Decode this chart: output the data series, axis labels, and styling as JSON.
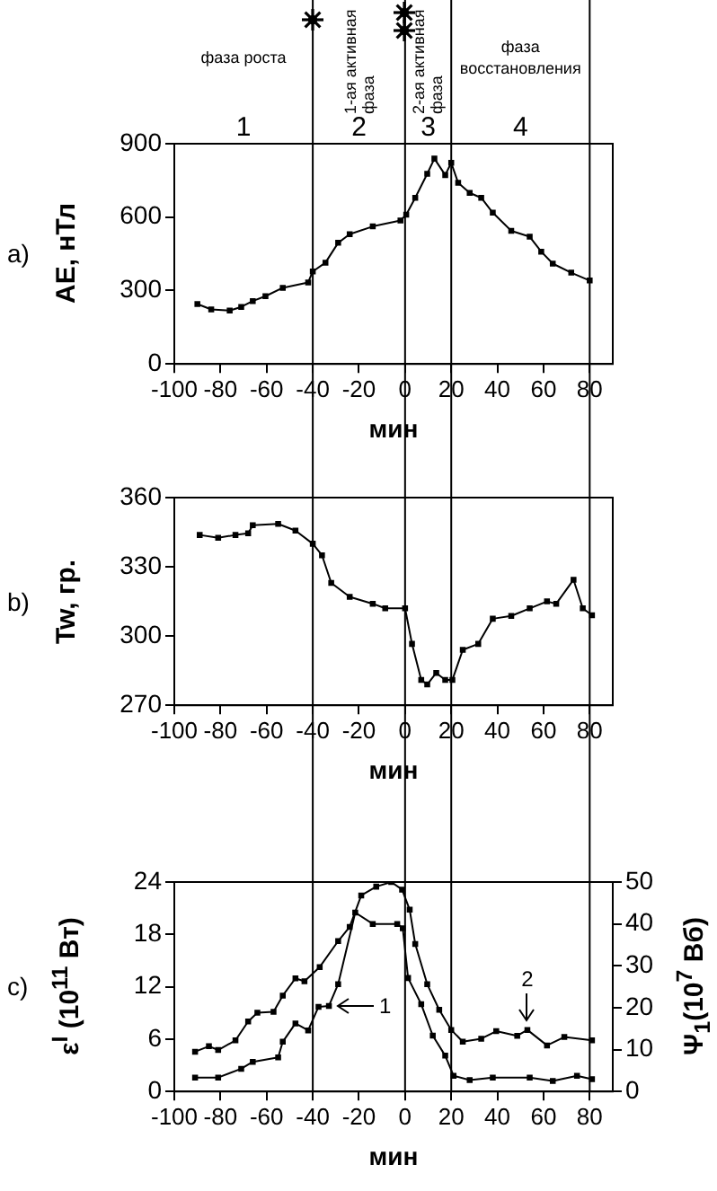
{
  "chart_data": [
    {
      "type": "line",
      "xlabel": "мин",
      "ylabel": "AE, нТл",
      "marker": "square",
      "xlim": [
        -100,
        90
      ],
      "xticks": [
        -100,
        -80,
        -60,
        -40,
        -20,
        0,
        20,
        40,
        60,
        80
      ],
      "ylim": [
        0,
        900
      ],
      "yticks": [
        0,
        300,
        600,
        900
      ],
      "series": [
        {
          "color": "#000000",
          "x": [
            -90,
            -84,
            -76,
            -71,
            -66,
            -60.5,
            -53,
            -42,
            -40,
            -34.5,
            -29,
            -24,
            -14,
            -2,
            0.5,
            4.4,
            9.6,
            12.7,
            17.4,
            20,
            23,
            28,
            33,
            38,
            46,
            54,
            59,
            64,
            72,
            80
          ],
          "values": [
            245,
            223,
            218,
            233,
            257,
            277,
            311,
            333,
            378,
            414,
            495,
            530,
            562,
            586,
            610,
            679,
            777,
            839,
            772,
            822,
            740,
            699,
            679,
            618,
            544,
            520,
            459,
            410,
            373,
            341
          ]
        }
      ],
      "ref_lines": [
        {
          "axis": "x",
          "value": -40
        },
        {
          "axis": "x",
          "value": 0
        },
        {
          "axis": "x",
          "value": 20
        },
        {
          "axis": "x",
          "value": 80
        }
      ],
      "annotations": [
        "a)",
        "1",
        "2",
        "3",
        "4",
        "фаза роста",
        "1-ая активная фаза",
        "2-ая активная фаза",
        "фаза восстановления"
      ]
    },
    {
      "type": "line",
      "xlabel": "мин",
      "ylabel": "Tw, гр.",
      "marker": "square",
      "xlim": [
        -100,
        90
      ],
      "xticks": [
        -100,
        -80,
        -60,
        -40,
        -20,
        0,
        20,
        40,
        60,
        80
      ],
      "ylim": [
        270,
        360
      ],
      "yticks": [
        270,
        300,
        330,
        360
      ],
      "series": [
        {
          "color": "#000000",
          "x": [
            -89,
            -81,
            -73.5,
            -68,
            -66,
            -55,
            -47.5,
            -40,
            -36,
            -32,
            -24,
            -14,
            -8.6,
            0,
            3,
            7,
            9.6,
            13.5,
            17.4,
            20.5,
            25,
            31.7,
            38,
            46,
            54,
            61.5,
            65.5,
            73,
            77,
            81
          ],
          "values": [
            343.8,
            342.6,
            343.8,
            344.5,
            348,
            348.6,
            345.7,
            340,
            335,
            323,
            317,
            314,
            312,
            312,
            296.6,
            281,
            279,
            284,
            281,
            281,
            294,
            296.6,
            307.5,
            308.7,
            312,
            315,
            314,
            324.4,
            312,
            309
          ]
        }
      ],
      "ref_lines": [
        {
          "axis": "x",
          "value": -40
        },
        {
          "axis": "x",
          "value": 0
        },
        {
          "axis": "x",
          "value": 20
        },
        {
          "axis": "x",
          "value": 80
        }
      ],
      "annotations": [
        "b)"
      ]
    },
    {
      "type": "line",
      "xlabel": "мин",
      "ylabel": "ε$^{I}$ (10$^{11}$ Вт)",
      "y2label": "Ψ$_{1}$(10$^{7}$ Вб)",
      "marker": "square",
      "xlim": [
        -100,
        90
      ],
      "xticks": [
        -100,
        -80,
        -60,
        -40,
        -20,
        0,
        20,
        40,
        60,
        80
      ],
      "ylim": [
        0,
        24
      ],
      "yticks": [
        0,
        6,
        12,
        18,
        24
      ],
      "y2lim": [
        0,
        50
      ],
      "y2ticks": [
        0,
        10,
        20,
        30,
        40,
        50
      ],
      "series": [
        {
          "color": "#000000",
          "x": [
            -91,
            -81,
            -71,
            -66,
            -55,
            -53,
            -47.5,
            -42,
            -37.5,
            -33,
            -29,
            -21.6,
            -14,
            -3.4,
            -1,
            1.3,
            7,
            12,
            17.4,
            21,
            28,
            38,
            54,
            64,
            74.5,
            81
          ],
          "values": [
            1.6,
            1.6,
            2.6,
            3.4,
            3.9,
            5.7,
            7.8,
            7.0,
            9.7,
            9.8,
            12.3,
            20.5,
            19.2,
            19.2,
            18.7,
            13.0,
            10.0,
            6.4,
            4.1,
            1.8,
            1.3,
            1.6,
            1.6,
            1.2,
            1.8,
            1.4
          ]
        },
        {
          "color": "#000000",
          "axis": "y2",
          "x": [
            -91,
            -85,
            -81,
            -73.5,
            -68,
            -64,
            -57,
            -53,
            -47.5,
            -43.6,
            -37,
            -29,
            -24,
            -19,
            -12.5,
            -6,
            -1.3,
            2,
            4.4,
            9.6,
            14.8,
            20,
            25,
            33,
            39.5,
            48.6,
            53,
            61.5,
            69,
            81
          ],
          "values": [
            9.5,
            10.8,
            9.9,
            12.2,
            16.7,
            18.8,
            19.0,
            22.9,
            27.0,
            26.3,
            29.7,
            35.9,
            39.3,
            46.8,
            48.9,
            50.0,
            48.2,
            43.4,
            35.2,
            25.6,
            19.5,
            14.7,
            11.9,
            12.6,
            14.4,
            13.3,
            14.7,
            11.0,
            13.0,
            12.2
          ]
        }
      ],
      "ref_lines": [
        {
          "axis": "x",
          "value": -40
        },
        {
          "axis": "x",
          "value": 0
        },
        {
          "axis": "x",
          "value": 20
        },
        {
          "axis": "x",
          "value": 80
        }
      ],
      "annotations": [
        "c)",
        {
          "text": "1",
          "x": -33,
          "y": 9.8
        },
        {
          "text": "2",
          "x": 53,
          "y": 7.1
        }
      ]
    }
  ]
}
